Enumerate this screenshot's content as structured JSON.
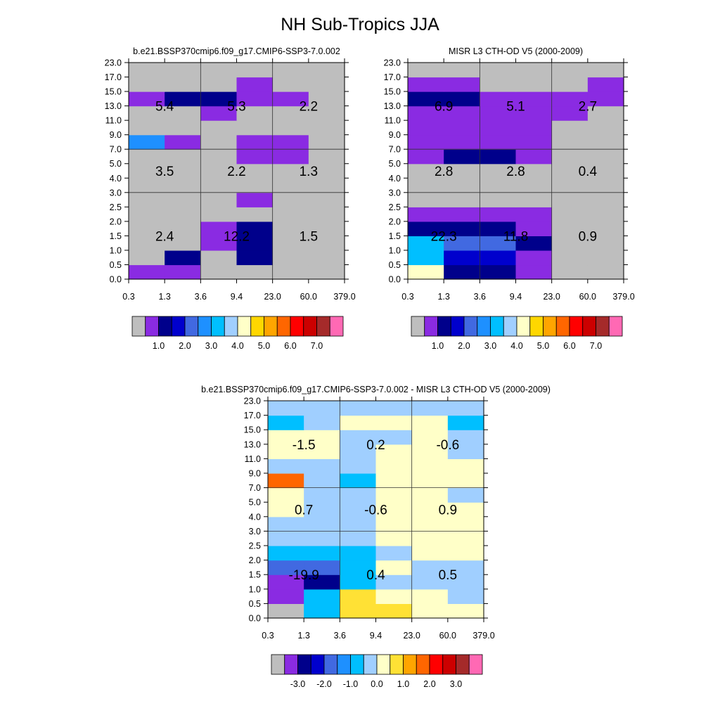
{
  "title": "NH Sub-Tropics JJA",
  "x_ticks": [
    "0.3",
    "1.3",
    "3.6",
    "9.4",
    "23.0",
    "60.0",
    "379.0"
  ],
  "y_ticks": [
    "0.0",
    "0.5",
    "1.0",
    "1.5",
    "2.0",
    "2.5",
    "3.0",
    "4.0",
    "5.0",
    "7.0",
    "9.0",
    "11.0",
    "13.0",
    "15.0",
    "17.0",
    "23.0"
  ],
  "palettes": {
    "abs": [
      "#bebebe",
      "#8a2be2",
      "#00008b",
      "#0000cd",
      "#4169e1",
      "#1e90ff",
      "#00bfff",
      "#a0cfff",
      "#ffffc8",
      "#ffd700",
      "#ffa500",
      "#ff6600",
      "#ff0000",
      "#cc0000",
      "#a52a2a",
      "#ff69b4"
    ],
    "diff": [
      "#bebebe",
      "#8a2be2",
      "#00008b",
      "#0000cd",
      "#4169e1",
      "#1e90ff",
      "#00bfff",
      "#a0cfff",
      "#ffffc8",
      "#ffe135",
      "#ffa500",
      "#ff6600",
      "#ff0000",
      "#cc0000",
      "#a52a2a",
      "#ff69b4"
    ]
  },
  "colorbars": {
    "abs": {
      "labels": [
        "1.0",
        "2.0",
        "3.0",
        "4.0",
        "5.0",
        "6.0",
        "7.0"
      ]
    },
    "diff": {
      "labels": [
        "-3.0",
        "-2.0",
        "-1.0",
        "0.0",
        "1.0",
        "2.0",
        "3.0"
      ]
    }
  },
  "chart_data": [
    {
      "type": "heatmap",
      "title": "b.e21.BSSP370cmip6.f09_g17.CMIP6-SSP3-7.0.002",
      "xlabel": "",
      "ylabel": "",
      "palette": "abs",
      "colorbar": "abs",
      "cells": [
        [
          1,
          1,
          0,
          0,
          0,
          0
        ],
        [
          0,
          2,
          0,
          2,
          0,
          0
        ],
        [
          0,
          0,
          1,
          2,
          0,
          0
        ],
        [
          0,
          0,
          1,
          2,
          0,
          0
        ],
        [
          0,
          0,
          0,
          0,
          0,
          0
        ],
        [
          0,
          0,
          0,
          1,
          0,
          0
        ],
        [
          0,
          0,
          0,
          0,
          0,
          0
        ],
        [
          0,
          0,
          0,
          0,
          0,
          0
        ],
        [
          0,
          0,
          0,
          1,
          1,
          0
        ],
        [
          5,
          1,
          0,
          1,
          1,
          0
        ],
        [
          0,
          0,
          0,
          0,
          0,
          0
        ],
        [
          0,
          0,
          1,
          0,
          0,
          0
        ],
        [
          1,
          2,
          2,
          1,
          1,
          0
        ],
        [
          0,
          0,
          0,
          1,
          0,
          0
        ],
        [
          0,
          0,
          0,
          0,
          0,
          0
        ]
      ],
      "cell_matrix_note": "rows from y 0.0 upward, columns from x 0.3 rightward; values are palette indices",
      "box_labels": [
        [
          "2.4",
          "12.2",
          "1.5"
        ],
        [
          "3.5",
          "2.2",
          "1.3"
        ],
        [
          "5.4",
          "5.3",
          "2.2"
        ]
      ]
    },
    {
      "type": "heatmap",
      "title": "MISR L3 CTH-OD V5 (2000-2009)",
      "xlabel": "",
      "ylabel": "",
      "palette": "abs",
      "colorbar": "abs",
      "cells": [
        [
          8,
          2,
          2,
          1,
          0,
          0
        ],
        [
          6,
          3,
          3,
          1,
          0,
          0
        ],
        [
          6,
          4,
          4,
          2,
          0,
          0
        ],
        [
          2,
          2,
          2,
          1,
          0,
          0
        ],
        [
          1,
          1,
          1,
          1,
          0,
          0
        ],
        [
          0,
          0,
          0,
          0,
          0,
          0
        ],
        [
          0,
          0,
          0,
          0,
          0,
          0
        ],
        [
          0,
          0,
          0,
          0,
          0,
          0
        ],
        [
          1,
          2,
          2,
          1,
          0,
          0
        ],
        [
          1,
          1,
          1,
          1,
          0,
          0
        ],
        [
          1,
          1,
          1,
          1,
          0,
          0
        ],
        [
          1,
          1,
          1,
          1,
          1,
          0
        ],
        [
          2,
          2,
          1,
          1,
          1,
          1
        ],
        [
          1,
          1,
          0,
          0,
          0,
          1
        ],
        [
          0,
          0,
          0,
          0,
          0,
          0
        ]
      ],
      "box_labels": [
        [
          "22.3",
          "11.8",
          "0.9"
        ],
        [
          "2.8",
          "2.8",
          "0.4"
        ],
        [
          "6.9",
          "5.1",
          "2.7"
        ]
      ]
    },
    {
      "type": "heatmap",
      "title": "b.e21.BSSP370cmip6.f09_g17.CMIP6-SSP3-7.0.002 - MISR L3 CTH-OD V5 (2000-2009)",
      "xlabel": "",
      "ylabel": "",
      "palette": "diff",
      "colorbar": "diff",
      "cells": [
        [
          0,
          6,
          9,
          9,
          8,
          8
        ],
        [
          1,
          6,
          9,
          8,
          8,
          7
        ],
        [
          1,
          2,
          6,
          7,
          7,
          7
        ],
        [
          4,
          4,
          6,
          8,
          7,
          7
        ],
        [
          6,
          6,
          6,
          7,
          8,
          8
        ],
        [
          7,
          7,
          7,
          8,
          8,
          8
        ],
        [
          7,
          7,
          7,
          8,
          8,
          8
        ],
        [
          8,
          7,
          7,
          8,
          8,
          8
        ],
        [
          8,
          7,
          7,
          8,
          8,
          7
        ],
        [
          11,
          7,
          6,
          8,
          8,
          8
        ],
        [
          7,
          7,
          7,
          8,
          8,
          8
        ],
        [
          8,
          8,
          7,
          8,
          8,
          7
        ],
        [
          8,
          8,
          7,
          7,
          8,
          7
        ],
        [
          6,
          7,
          8,
          8,
          8,
          6
        ],
        [
          7,
          7,
          7,
          7,
          7,
          7
        ]
      ],
      "box_labels": [
        [
          "-19.9",
          "0.4",
          "0.5"
        ],
        [
          "0.7",
          "-0.6",
          "0.9"
        ],
        [
          "-1.5",
          "0.2",
          "-0.6"
        ]
      ]
    }
  ]
}
